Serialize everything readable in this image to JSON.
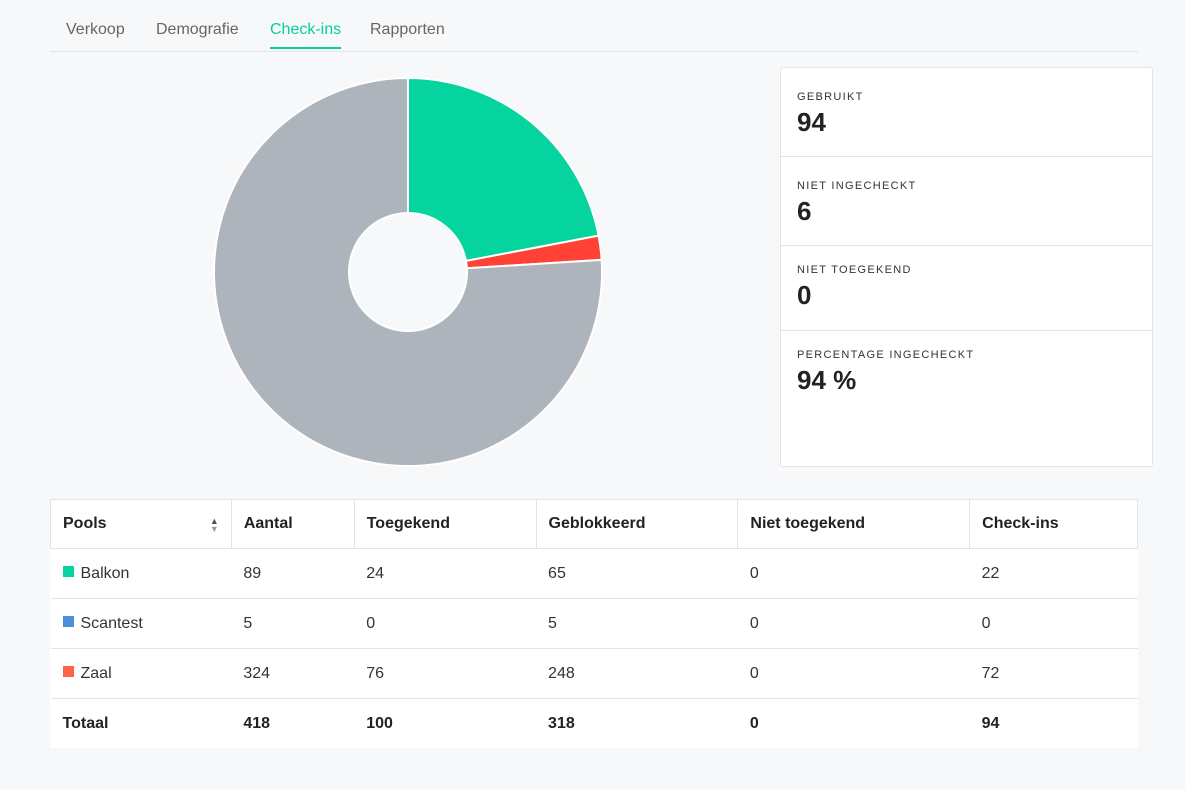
{
  "tabs": [
    {
      "label": "Verkoop",
      "active": false
    },
    {
      "label": "Demografie",
      "active": false
    },
    {
      "label": "Check-ins",
      "active": true
    },
    {
      "label": "Rapporten",
      "active": false
    }
  ],
  "stats": [
    {
      "label": "GEBRUIKT",
      "value": "94"
    },
    {
      "label": "NIET INGECHECKT",
      "value": "6"
    },
    {
      "label": "NIET TOEGEKEND",
      "value": "0"
    },
    {
      "label": "PERCENTAGE INGECHECKT",
      "value": "94 %"
    }
  ],
  "chart_data": {
    "type": "pie",
    "donut": true,
    "slices": [
      {
        "value": 22,
        "color": "#06d49f"
      },
      {
        "value": 2,
        "color": "#ff4136"
      },
      {
        "value": 76,
        "color": "#adb4bb"
      }
    ]
  },
  "table": {
    "headers": [
      "Pools",
      "Aantal",
      "Toegekend",
      "Geblokkeerd",
      "Niet toegekend",
      "Check-ins"
    ],
    "rows": [
      {
        "name": "Balkon",
        "color": "#06d49f",
        "cells": [
          "89",
          "24",
          "65",
          "0",
          "22"
        ]
      },
      {
        "name": "Scantest",
        "color": "#4a90d9",
        "cells": [
          "5",
          "0",
          "5",
          "0",
          "0"
        ]
      },
      {
        "name": "Zaal",
        "color": "#ff6347",
        "cells": [
          "324",
          "76",
          "248",
          "0",
          "72"
        ]
      }
    ],
    "total": {
      "label": "Totaal",
      "cells": [
        "418",
        "100",
        "318",
        "0",
        "94"
      ]
    }
  },
  "icons": {
    "sort": "sort-icon"
  }
}
